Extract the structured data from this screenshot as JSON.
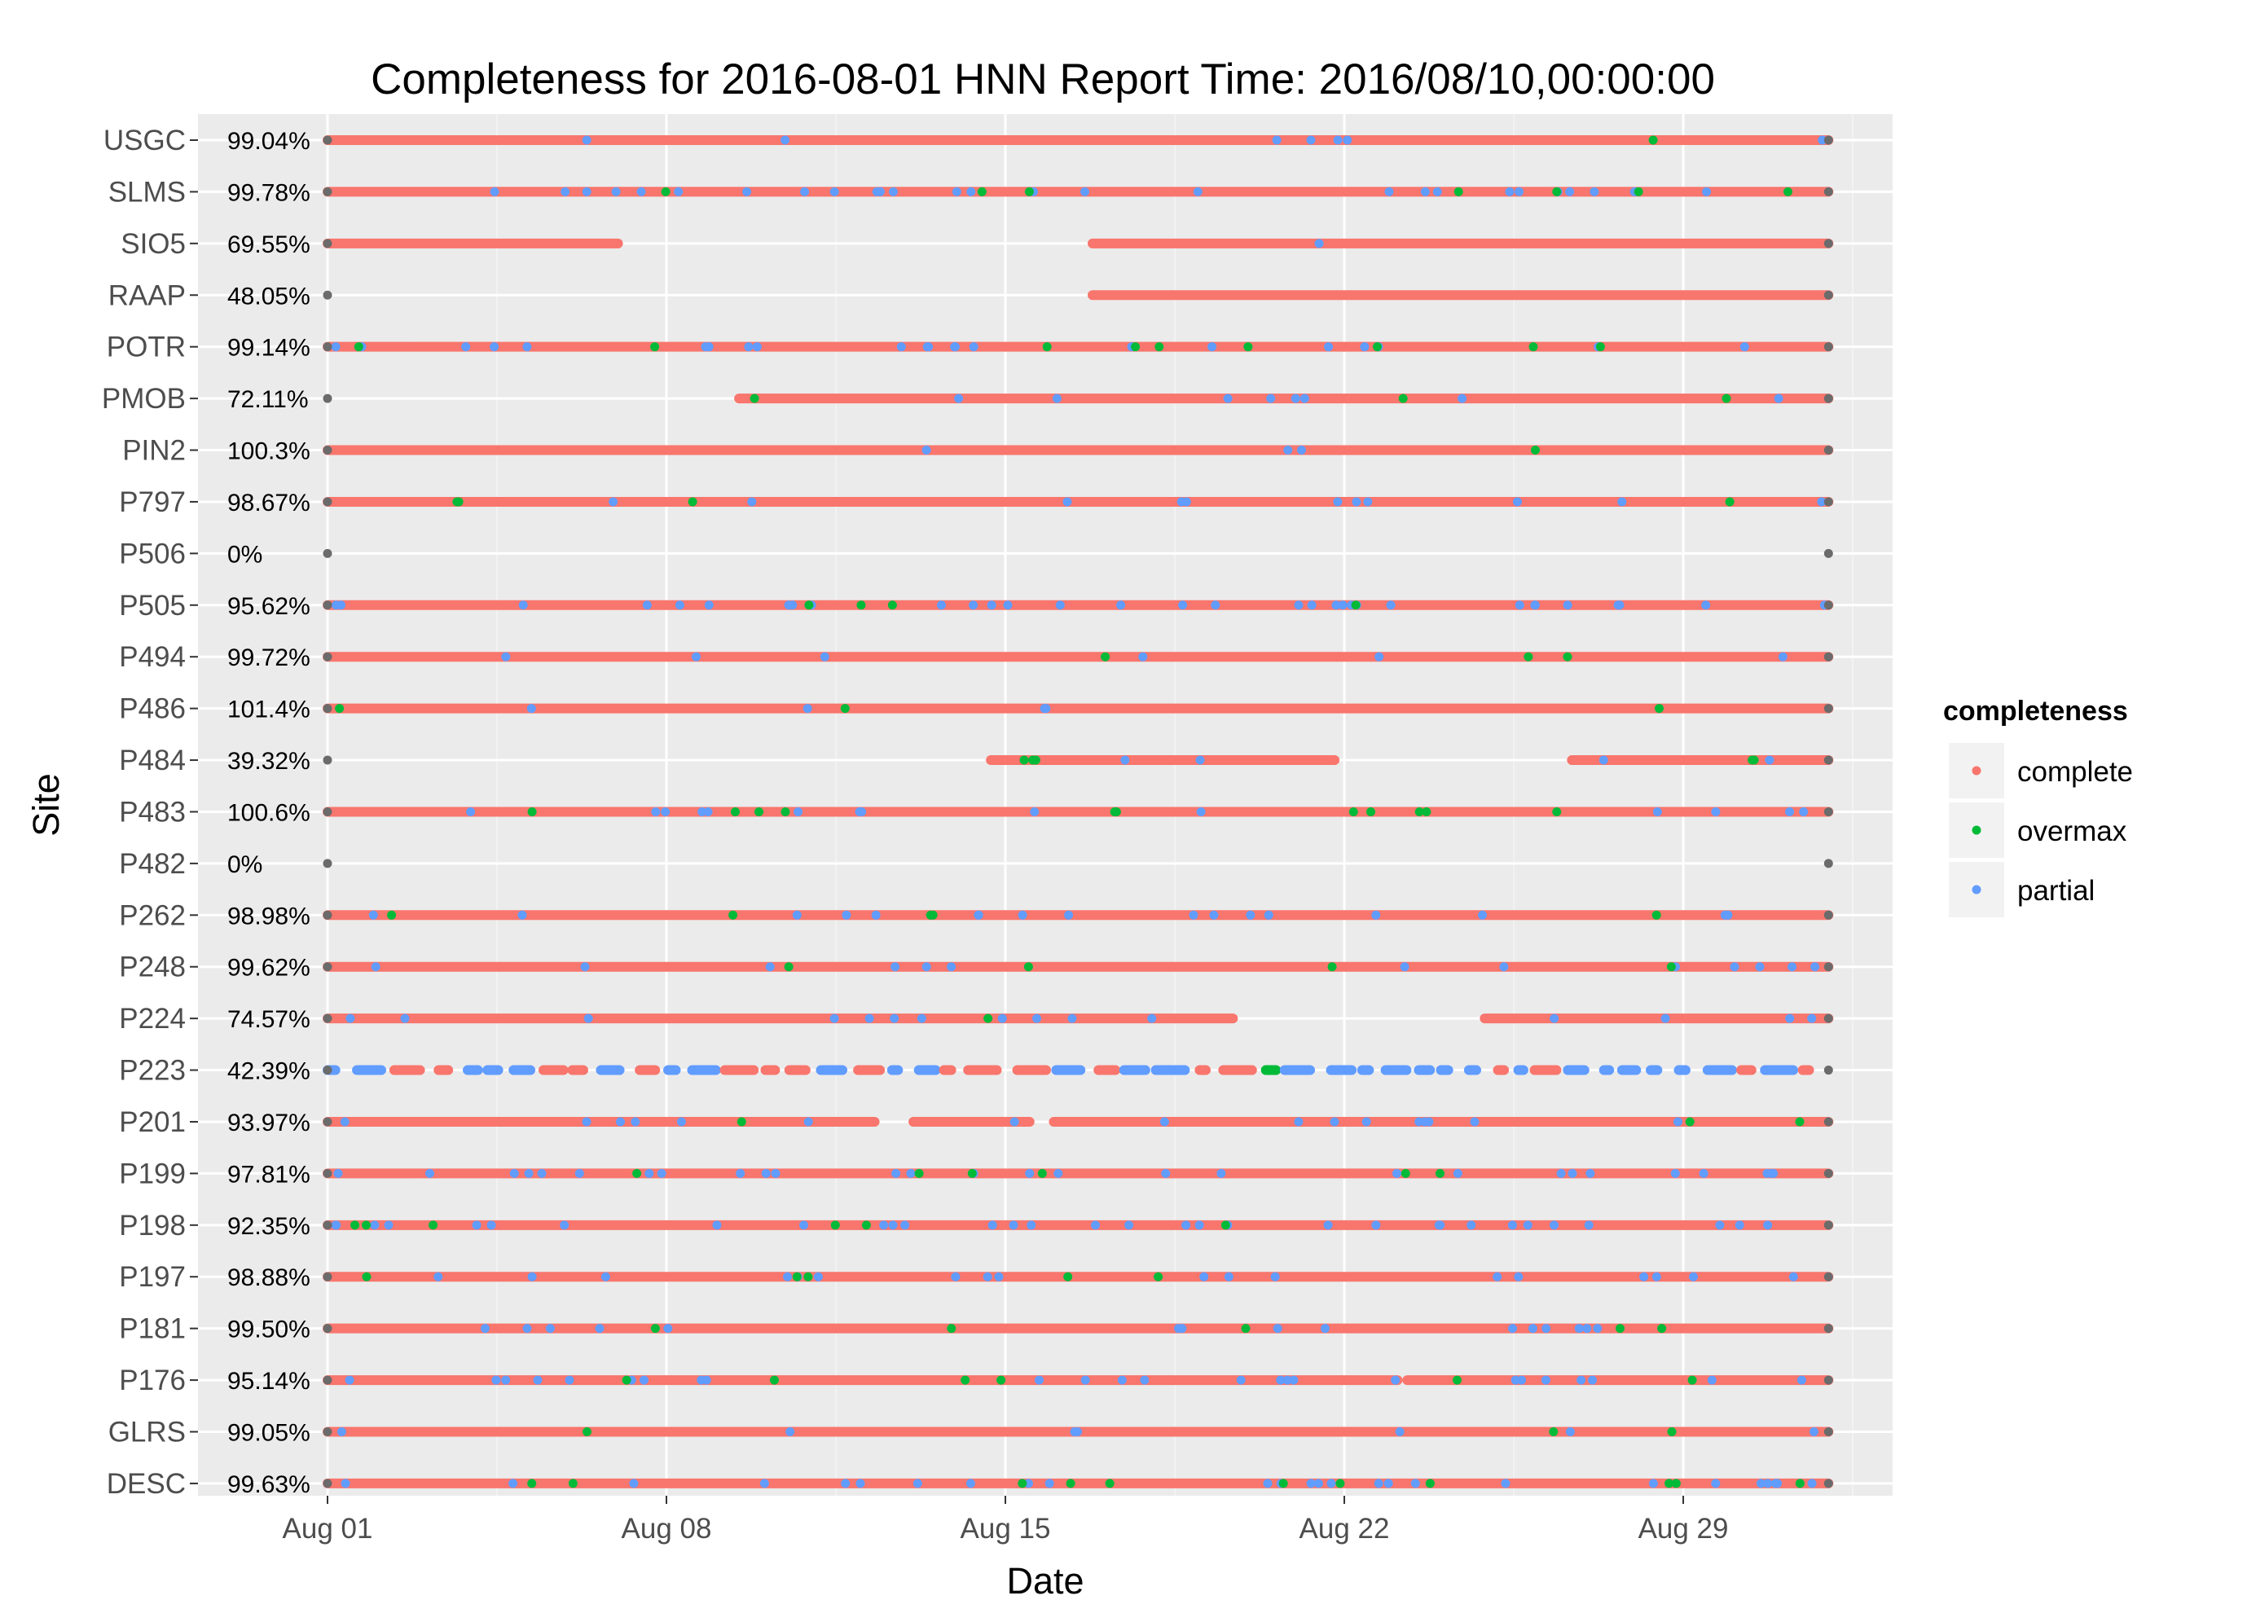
{
  "chart_data": {
    "type": "scatter",
    "title": "Completeness for  2016-08-01 HNN  Report Time:  2016/08/10,00:00:00",
    "xlabel": "Date",
    "ylabel": "Site",
    "x_ticks": [
      "Aug 01",
      "Aug 08",
      "Aug 15",
      "Aug 22",
      "Aug 29"
    ],
    "x_tick_days": [
      0,
      7,
      14,
      21,
      28
    ],
    "xlim_days": [
      -2.6,
      32.7
    ],
    "grid": true,
    "legend": {
      "title": "completeness",
      "position": "right",
      "entries": [
        {
          "label": "complete",
          "color": "#F8766D"
        },
        {
          "label": "overmax",
          "color": "#00BA38"
        },
        {
          "label": "partial",
          "color": "#619CFF"
        }
      ]
    },
    "colors": {
      "complete": "#F8766D",
      "overmax": "#00BA38",
      "partial": "#619CFF",
      "endpoint": "#6b6b6b"
    },
    "sites": [
      {
        "name": "USGC",
        "pct": "99.04%",
        "segments": [
          [
            0,
            31
          ]
        ],
        "partial_density": 0.08,
        "overmax_density": 0.01
      },
      {
        "name": "SLMS",
        "pct": "99.78%",
        "segments": [
          [
            0,
            31
          ]
        ],
        "partial_density": 0.3,
        "overmax_density": 0.08
      },
      {
        "name": "SIO5",
        "pct": "69.55%",
        "segments": [
          [
            0,
            6
          ],
          [
            15.8,
            31
          ]
        ],
        "partial_density": 0.02,
        "overmax_density": 0.01
      },
      {
        "name": "RAAP",
        "pct": "48.05%",
        "segments": [
          [
            15.8,
            31
          ]
        ],
        "partial_density": 0.01,
        "overmax_density": 0.01
      },
      {
        "name": "POTR",
        "pct": "99.14%",
        "segments": [
          [
            0,
            31
          ]
        ],
        "partial_density": 0.25,
        "overmax_density": 0.1
      },
      {
        "name": "PMOB",
        "pct": "72.11%",
        "segments": [
          [
            8.5,
            31
          ]
        ],
        "partial_density": 0.12,
        "overmax_density": 0.05
      },
      {
        "name": "PIN2",
        "pct": "100.3%",
        "segments": [
          [
            0,
            31
          ]
        ],
        "partial_density": 0.03,
        "overmax_density": 0.01
      },
      {
        "name": "P797",
        "pct": "98.67%",
        "segments": [
          [
            0,
            31
          ]
        ],
        "partial_density": 0.12,
        "overmax_density": 0.04
      },
      {
        "name": "P506",
        "pct": "0%",
        "segments": [],
        "partial_density": 0,
        "overmax_density": 0
      },
      {
        "name": "P505",
        "pct": "95.62%",
        "segments": [
          [
            0,
            31
          ]
        ],
        "partial_density": 0.35,
        "overmax_density": 0.04
      },
      {
        "name": "P494",
        "pct": "99.72%",
        "segments": [
          [
            0,
            31
          ]
        ],
        "partial_density": 0.06,
        "overmax_density": 0.03
      },
      {
        "name": "P486",
        "pct": "101.4%",
        "segments": [
          [
            0,
            31
          ]
        ],
        "partial_density": 0.04,
        "overmax_density": 0.03
      },
      {
        "name": "P484",
        "pct": "39.32%",
        "segments": [
          [
            13.7,
            20.8
          ],
          [
            25.7,
            31
          ]
        ],
        "partial_density": 0.1,
        "overmax_density": 0.15
      },
      {
        "name": "P483",
        "pct": "100.6%",
        "segments": [
          [
            0,
            31
          ]
        ],
        "partial_density": 0.15,
        "overmax_density": 0.12
      },
      {
        "name": "P482",
        "pct": "0%",
        "segments": [],
        "partial_density": 0,
        "overmax_density": 0
      },
      {
        "name": "P262",
        "pct": "98.98%",
        "segments": [
          [
            0,
            31
          ]
        ],
        "partial_density": 0.18,
        "overmax_density": 0.05
      },
      {
        "name": "P248",
        "pct": "99.62%",
        "segments": [
          [
            0,
            31
          ]
        ],
        "partial_density": 0.14,
        "overmax_density": 0.04
      },
      {
        "name": "P224",
        "pct": "74.57%",
        "segments": [
          [
            0,
            18.7
          ],
          [
            23.9,
            31
          ]
        ],
        "partial_density": 0.2,
        "overmax_density": 0.02
      },
      {
        "name": "P223",
        "pct": "42.39%",
        "segments": [
          [
            0,
            30.6
          ]
        ],
        "partial_density": 0.6,
        "overmax_density": 0.06,
        "sparse": true
      },
      {
        "name": "P201",
        "pct": "93.97%",
        "segments": [
          [
            0,
            11.3
          ],
          [
            12.1,
            14.5
          ],
          [
            15,
            31
          ]
        ],
        "partial_density": 0.18,
        "overmax_density": 0.04
      },
      {
        "name": "P199",
        "pct": "97.81%",
        "segments": [
          [
            0,
            31
          ]
        ],
        "partial_density": 0.3,
        "overmax_density": 0.06
      },
      {
        "name": "P198",
        "pct": "92.35%",
        "segments": [
          [
            0,
            31
          ]
        ],
        "partial_density": 0.35,
        "overmax_density": 0.06
      },
      {
        "name": "P197",
        "pct": "98.88%",
        "segments": [
          [
            0,
            31
          ]
        ],
        "partial_density": 0.2,
        "overmax_density": 0.05
      },
      {
        "name": "P181",
        "pct": "99.50%",
        "segments": [
          [
            0,
            31
          ]
        ],
        "partial_density": 0.16,
        "overmax_density": 0.05
      },
      {
        "name": "P176",
        "pct": "95.14%",
        "segments": [
          [
            0,
            22.1
          ],
          [
            22.3,
            31
          ]
        ],
        "partial_density": 0.28,
        "overmax_density": 0.06
      },
      {
        "name": "GLRS",
        "pct": "99.05%",
        "segments": [
          [
            0,
            31
          ]
        ],
        "partial_density": 0.08,
        "overmax_density": 0.03
      },
      {
        "name": "DESC",
        "pct": "99.63%",
        "segments": [
          [
            0,
            31
          ]
        ],
        "partial_density": 0.28,
        "overmax_density": 0.12
      }
    ]
  }
}
